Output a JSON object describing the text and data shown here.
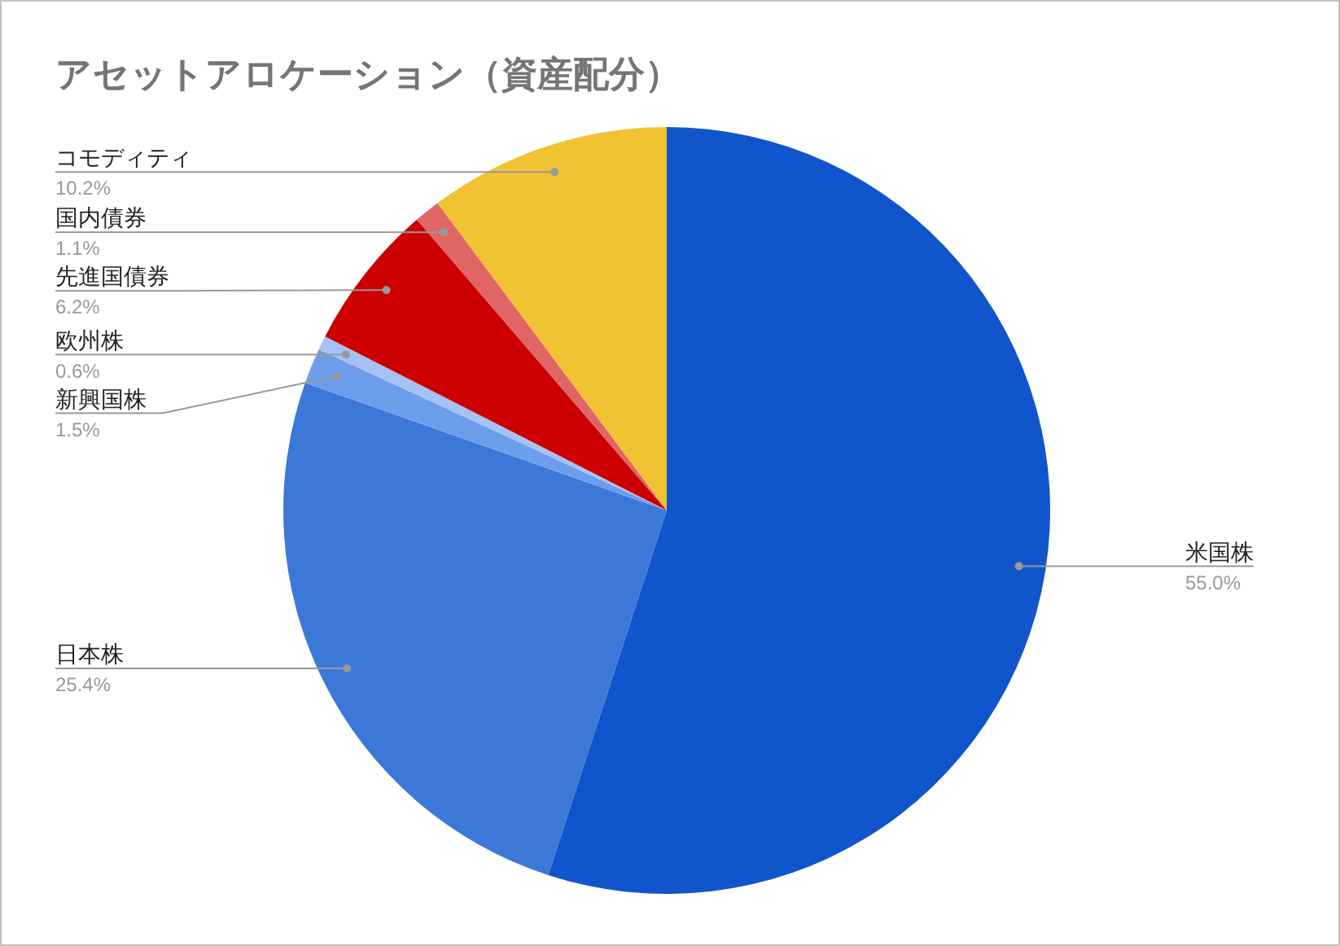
{
  "chart_data": {
    "type": "pie",
    "title": "アセットアロケーション（資産配分）",
    "categories": [
      "米国株",
      "日本株",
      "新興国株",
      "欧州株",
      "先進国債券",
      "国内債券",
      "コモディティ"
    ],
    "values": [
      55.0,
      25.4,
      1.5,
      0.6,
      6.2,
      1.1,
      10.2
    ],
    "value_labels": [
      "55.0%",
      "25.4%",
      "1.5%",
      "0.6%",
      "6.2%",
      "1.1%",
      "10.2%"
    ],
    "colors": [
      "#1155cc",
      "#3c78d8",
      "#6d9eeb",
      "#a4c2f4",
      "#cc0000",
      "#e06666",
      "#f1c232"
    ],
    "legend": false
  }
}
